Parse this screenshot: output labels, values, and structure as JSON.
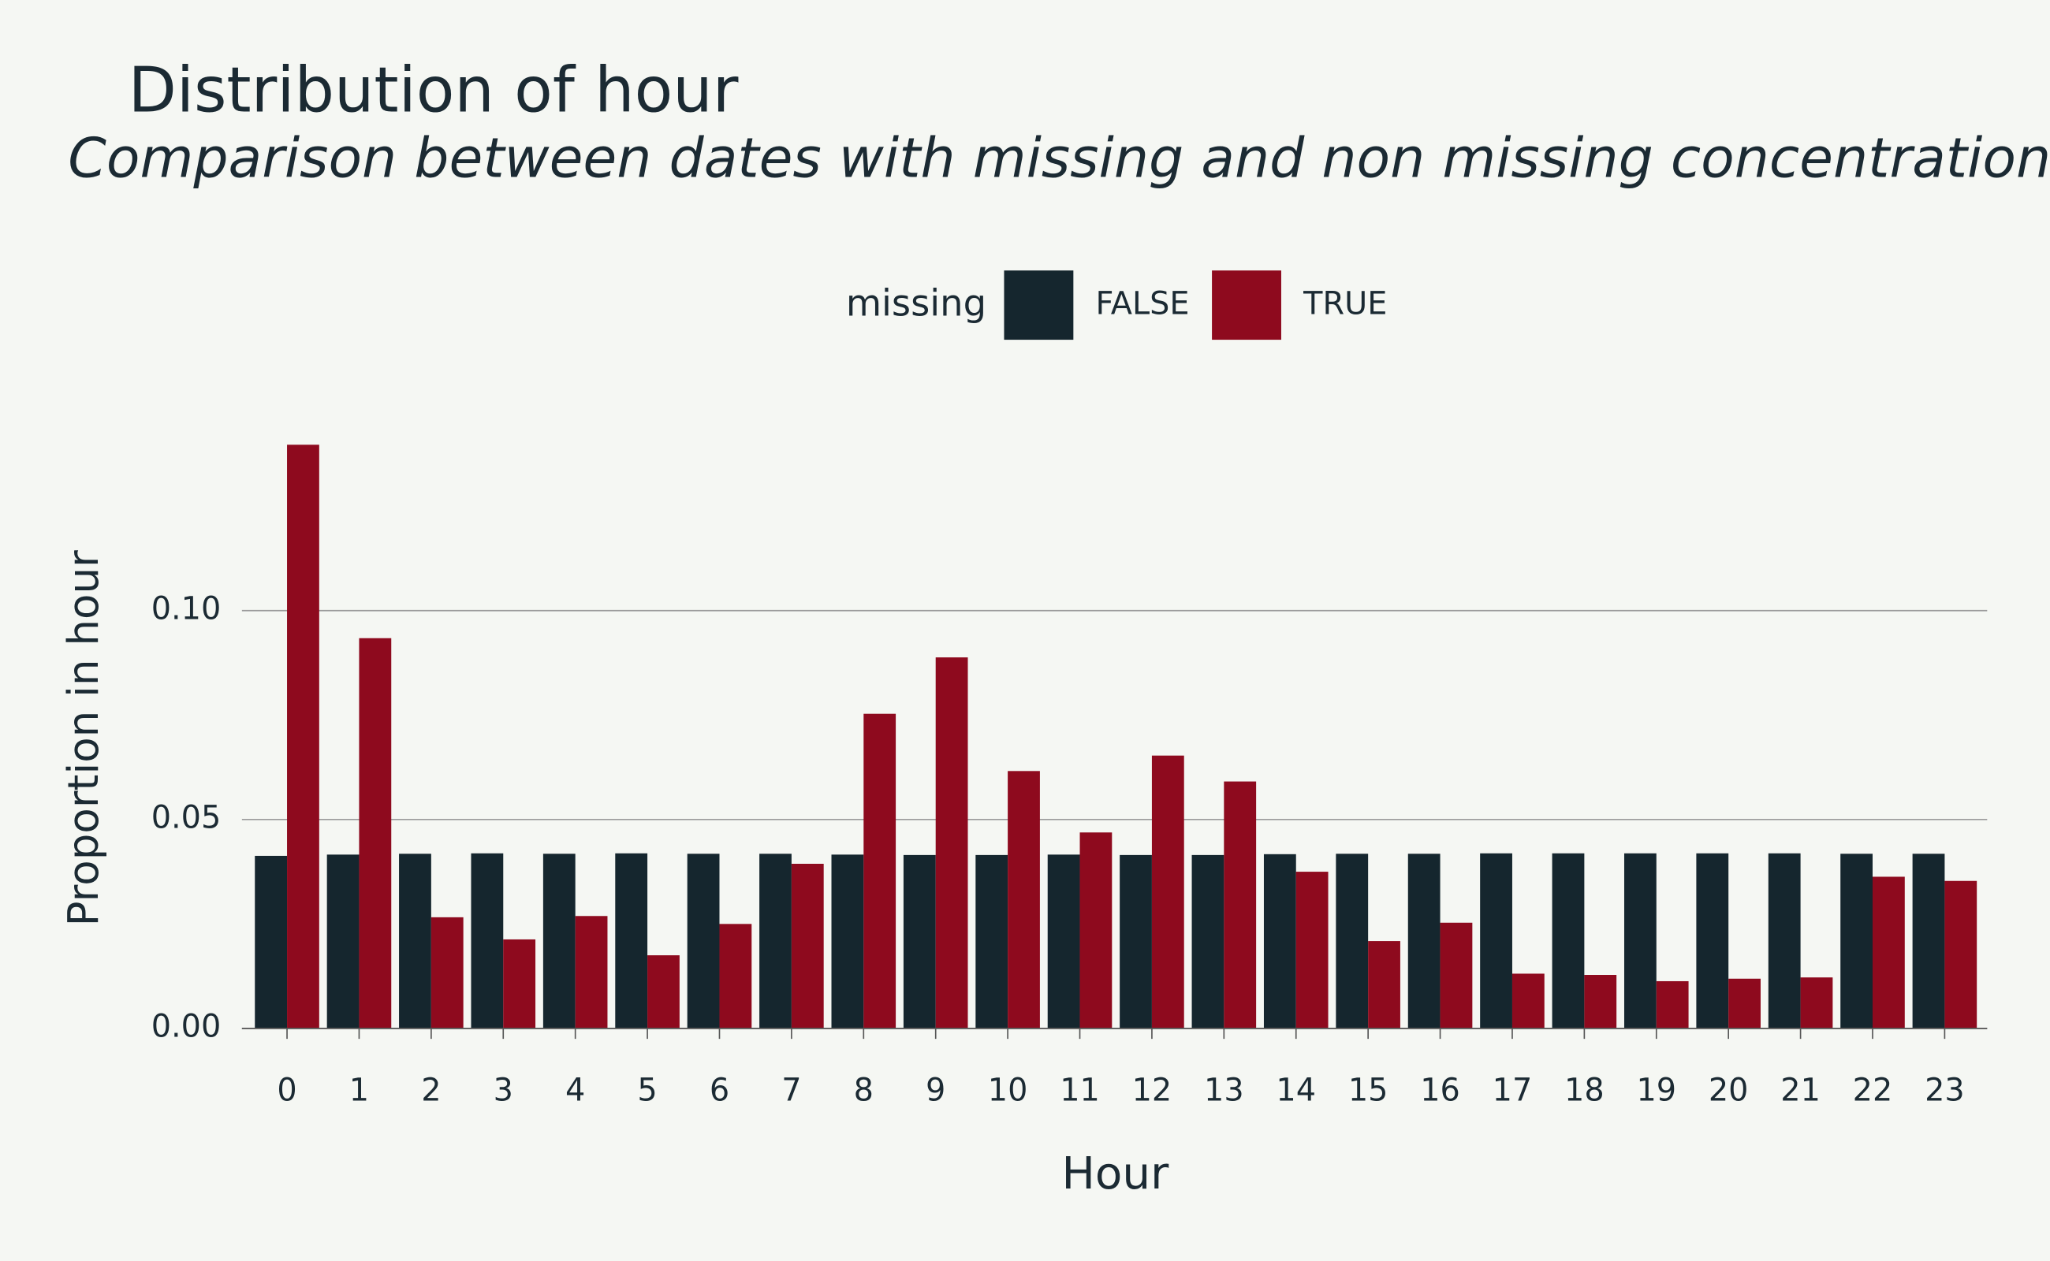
{
  "chart_data": {
    "type": "grouped-bar",
    "title": "Distribution of hour",
    "subtitle": "Comparison between dates with missing and non missing concentrations",
    "x_label": "Hour",
    "y_label": "Proportion in hour",
    "legend_title": "missing",
    "legend_position": "top",
    "grid": true,
    "categories": [
      "0",
      "1",
      "2",
      "3",
      "4",
      "5",
      "6",
      "7",
      "8",
      "9",
      "10",
      "11",
      "12",
      "13",
      "14",
      "15",
      "16",
      "17",
      "18",
      "19",
      "20",
      "21",
      "22",
      "23"
    ],
    "series": [
      {
        "name": "FALSE",
        "color": "#15262e",
        "values": [
          0.0413,
          0.0416,
          0.0418,
          0.0419,
          0.0418,
          0.0419,
          0.0418,
          0.0418,
          0.0416,
          0.0415,
          0.0415,
          0.0416,
          0.0415,
          0.0415,
          0.0417,
          0.0418,
          0.0418,
          0.0419,
          0.0419,
          0.0419,
          0.0419,
          0.0419,
          0.0418,
          0.0418
        ]
      },
      {
        "name": "TRUE",
        "color": "#8e0a1e",
        "values": [
          0.1397,
          0.0934,
          0.0266,
          0.0213,
          0.0269,
          0.0175,
          0.025,
          0.0394,
          0.0753,
          0.0888,
          0.0616,
          0.0469,
          0.0653,
          0.0591,
          0.0375,
          0.0209,
          0.0253,
          0.0131,
          0.0128,
          0.0113,
          0.0119,
          0.0122,
          0.0363,
          0.0353
        ]
      }
    ],
    "ylim": [
      0,
      0.147
    ],
    "yticks": [
      {
        "value": 0,
        "label": "0.00"
      },
      0.05,
      {
        "value": 0.1,
        "label": "0.10"
      }
    ]
  }
}
